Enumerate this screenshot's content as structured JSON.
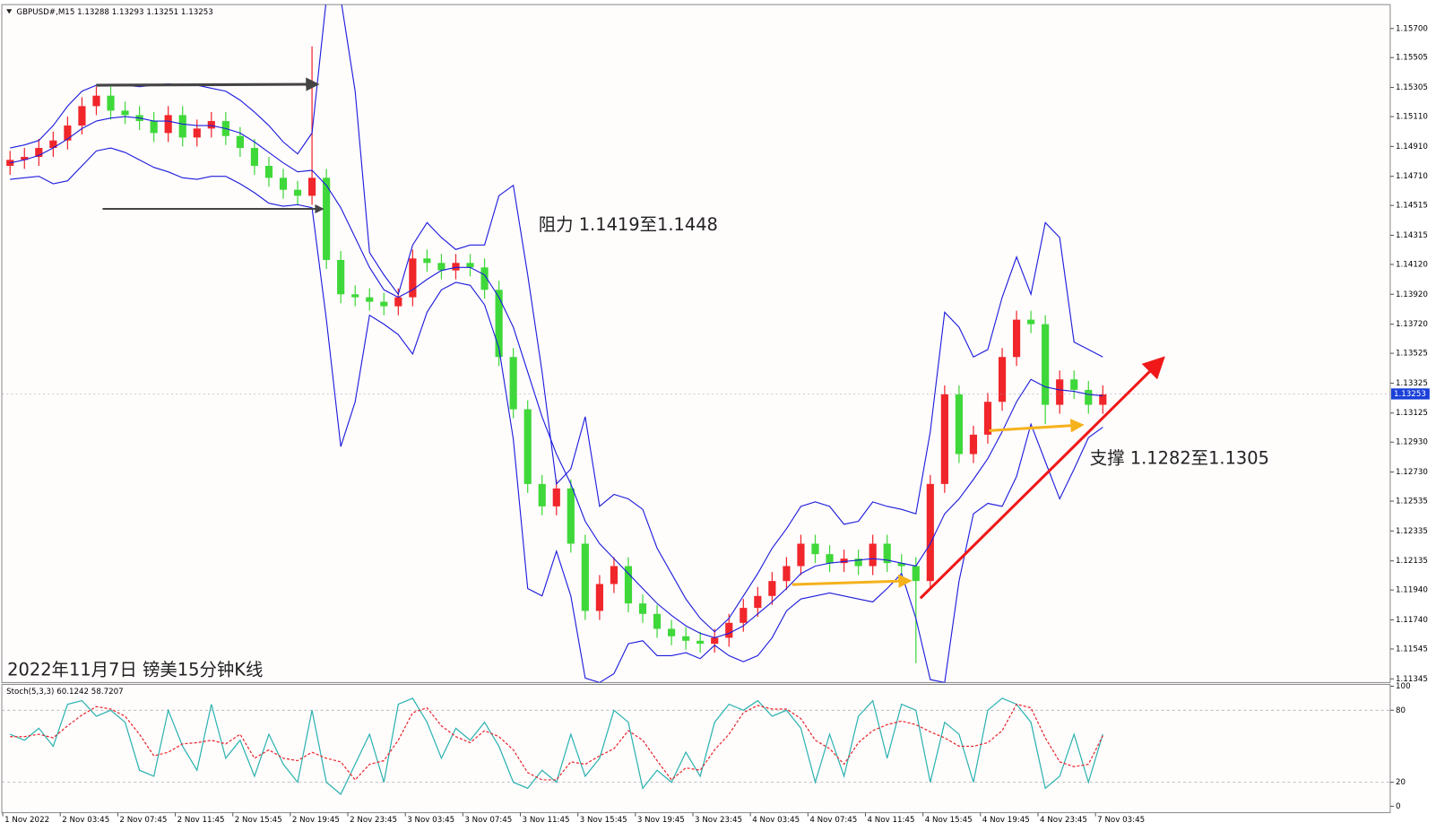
{
  "chart_data": [
    {
      "type": "candlestick",
      "title": "GBPUSD#,M15  1.13288 1.13293 1.13251 1.13253",
      "caption": "2022年11月7日 镑美15分钟K线",
      "annotations": [
        "阻力 1.1419至1.1448",
        "支撑 1.1282至1.1305"
      ],
      "categories": [
        "1 Nov 2022",
        null,
        null,
        null,
        "2 Nov 03:45",
        null,
        null,
        null,
        "2 Nov 07:45",
        null,
        null,
        null,
        "2 Nov 11:45",
        null,
        null,
        null,
        "2 Nov 15:45",
        null,
        null,
        null,
        "2 Nov 19:45",
        null,
        null,
        null,
        "2 Nov 23:45",
        null,
        null,
        null,
        "3 Nov 03:45",
        null,
        null,
        null,
        "3 Nov 07:45",
        null,
        null,
        null,
        "3 Nov 11:45",
        null,
        null,
        null,
        "3 Nov 15:45",
        null,
        null,
        null,
        "3 Nov 19:45",
        null,
        null,
        null,
        "3 Nov 23:45",
        null,
        null,
        null,
        "4 Nov 03:45",
        null,
        null,
        null,
        "4 Nov 07:45",
        null,
        null,
        null,
        "4 Nov 11:45",
        null,
        null,
        null,
        "4 Nov 15:45",
        null,
        null,
        null,
        "4 Nov 19:45",
        null,
        null,
        null,
        "4 Nov 23:45",
        null,
        null,
        null,
        "7 Nov 03:45"
      ],
      "open": [
        1.1478,
        1.1482,
        1.1484,
        1.149,
        1.1495,
        1.1505,
        1.1518,
        1.1525,
        1.1515,
        1.1512,
        1.1508,
        1.15,
        1.1512,
        1.1497,
        1.1503,
        1.1508,
        1.1498,
        1.149,
        1.1478,
        1.147,
        1.1462,
        1.1458,
        1.147,
        1.1415,
        1.1392,
        1.139,
        1.1387,
        1.1384,
        1.139,
        1.1416,
        1.1413,
        1.1408,
        1.1413,
        1.141,
        1.1395,
        1.135,
        1.1315,
        1.1265,
        1.125,
        1.1262,
        1.1225,
        1.118,
        1.1198,
        1.121,
        1.1185,
        1.1178,
        1.1168,
        1.1163,
        1.116,
        1.1158,
        1.1162,
        1.1172,
        1.1182,
        1.119,
        1.12,
        1.121,
        1.1225,
        1.1218,
        1.1212,
        1.1215,
        1.121,
        1.1225,
        1.1212,
        1.121,
        1.12,
        1.1265,
        1.1325,
        1.1285,
        1.1298,
        1.132,
        1.135,
        1.1375,
        1.1372,
        1.1318,
        1.1335,
        1.1328,
        1.1318
      ],
      "high": [
        1.1488,
        1.149,
        1.1496,
        1.1501,
        1.1511,
        1.1524,
        1.1531,
        1.1531,
        1.1521,
        1.1518,
        1.1514,
        1.1518,
        1.1518,
        1.1509,
        1.1514,
        1.1514,
        1.1504,
        1.1496,
        1.1484,
        1.1476,
        1.1468,
        1.1558,
        1.1476,
        1.1421,
        1.1398,
        1.1396,
        1.1393,
        1.1396,
        1.1422,
        1.1422,
        1.1419,
        1.1419,
        1.1419,
        1.1416,
        1.1401,
        1.1356,
        1.1321,
        1.1271,
        1.1268,
        1.1268,
        1.1231,
        1.1204,
        1.1216,
        1.1216,
        1.1191,
        1.1184,
        1.1174,
        1.1169,
        1.1166,
        1.1168,
        1.1178,
        1.1188,
        1.1196,
        1.1206,
        1.1216,
        1.1231,
        1.1231,
        1.1224,
        1.1221,
        1.1221,
        1.1231,
        1.1231,
        1.1218,
        1.1216,
        1.1271,
        1.1331,
        1.1331,
        1.1304,
        1.1326,
        1.1356,
        1.1381,
        1.1381,
        1.1378,
        1.1341,
        1.1341,
        1.1334,
        1.1331
      ],
      "low": [
        1.1472,
        1.1476,
        1.1478,
        1.1484,
        1.1489,
        1.1499,
        1.1512,
        1.1509,
        1.1506,
        1.1502,
        1.1494,
        1.1494,
        1.1491,
        1.1491,
        1.1497,
        1.1492,
        1.1484,
        1.1472,
        1.1464,
        1.1456,
        1.1452,
        1.1452,
        1.1409,
        1.1386,
        1.1384,
        1.1381,
        1.1378,
        1.1378,
        1.1384,
        1.1407,
        1.1402,
        1.1402,
        1.1404,
        1.1389,
        1.1344,
        1.1309,
        1.1259,
        1.1244,
        1.1244,
        1.1219,
        1.1174,
        1.1174,
        1.1192,
        1.1179,
        1.1172,
        1.1162,
        1.1157,
        1.1154,
        1.1152,
        1.1152,
        1.1156,
        1.1166,
        1.1176,
        1.1184,
        1.1194,
        1.1204,
        1.1212,
        1.1206,
        1.1206,
        1.1204,
        1.1204,
        1.1206,
        1.1204,
        1.1145,
        1.1194,
        1.1259,
        1.1279,
        1.1279,
        1.1292,
        1.1314,
        1.1344,
        1.1366,
        1.1305,
        1.1312,
        1.1322,
        1.1312,
        1.1312
      ],
      "close": [
        1.1482,
        1.1484,
        1.149,
        1.1495,
        1.1505,
        1.1518,
        1.1525,
        1.1515,
        1.1512,
        1.1508,
        1.15,
        1.1512,
        1.1497,
        1.1503,
        1.1508,
        1.1498,
        1.149,
        1.1478,
        1.147,
        1.1462,
        1.1458,
        1.147,
        1.1415,
        1.1392,
        1.139,
        1.1387,
        1.1384,
        1.139,
        1.1416,
        1.1413,
        1.1408,
        1.1413,
        1.141,
        1.1395,
        1.135,
        1.1315,
        1.1265,
        1.125,
        1.1262,
        1.1225,
        1.118,
        1.1198,
        1.121,
        1.1185,
        1.1178,
        1.1168,
        1.1163,
        1.116,
        1.1158,
        1.1162,
        1.1172,
        1.1182,
        1.119,
        1.12,
        1.121,
        1.1225,
        1.1218,
        1.1212,
        1.1215,
        1.121,
        1.1225,
        1.1212,
        1.121,
        1.12,
        1.1265,
        1.1325,
        1.1285,
        1.1298,
        1.132,
        1.135,
        1.1375,
        1.1372,
        1.1318,
        1.1335,
        1.1328,
        1.1318,
        1.1325
      ],
      "up_color": "#f0262b",
      "down_color": "#3fd83a",
      "overlays": [
        {
          "color": "#1c1cdc",
          "values": [
            1.149,
            1.1492,
            1.1495,
            1.1505,
            1.1518,
            1.1528,
            1.1532,
            1.1532,
            1.1532,
            1.1531,
            1.1532,
            1.1533,
            1.1532,
            1.1532,
            1.153,
            1.1528,
            1.1522,
            1.1514,
            1.1505,
            1.1494,
            1.1486,
            1.15,
            1.159,
            1.159,
            1.1528,
            1.142,
            1.1405,
            1.1392,
            1.1425,
            1.144,
            1.143,
            1.1422,
            1.1425,
            1.1425,
            1.1458,
            1.1465,
            1.1405,
            1.134,
            1.1265,
            1.1275,
            1.131,
            1.125,
            1.1258,
            1.1255,
            1.1248,
            1.1222,
            1.1205,
            1.1188,
            1.1175,
            1.1166,
            1.1175,
            1.119,
            1.1205,
            1.1222,
            1.1235,
            1.125,
            1.1253,
            1.125,
            1.1238,
            1.124,
            1.1253,
            1.125,
            1.1248,
            1.1245,
            1.13,
            1.138,
            1.137,
            1.135,
            1.1355,
            1.139,
            1.1417,
            1.1392,
            1.144,
            1.143,
            1.136,
            1.1355,
            1.135
          ]
        },
        {
          "color": "#1c1cdc",
          "values": [
            1.148,
            1.1482,
            1.1485,
            1.149,
            1.1496,
            1.1503,
            1.1508,
            1.151,
            1.1511,
            1.151,
            1.1508,
            1.1508,
            1.1506,
            1.1505,
            1.1505,
            1.1503,
            1.15,
            1.1494,
            1.1487,
            1.148,
            1.1474,
            1.1475,
            1.1465,
            1.145,
            1.143,
            1.141,
            1.1395,
            1.139,
            1.1395,
            1.1402,
            1.1408,
            1.141,
            1.141,
            1.1405,
            1.139,
            1.137,
            1.134,
            1.131,
            1.1285,
            1.1265,
            1.124,
            1.1225,
            1.1215,
            1.1205,
            1.1195,
            1.1185,
            1.1177,
            1.117,
            1.1165,
            1.1162,
            1.1165,
            1.117,
            1.1178,
            1.1186,
            1.1195,
            1.1205,
            1.121,
            1.1212,
            1.1213,
            1.1214,
            1.1215,
            1.1214,
            1.1212,
            1.121,
            1.1225,
            1.1245,
            1.1255,
            1.1268,
            1.1282,
            1.13,
            1.132,
            1.1335,
            1.133,
            1.1328,
            1.1327,
            1.1325,
            1.1324
          ]
        },
        {
          "color": "#1c1cdc",
          "values": [
            1.1469,
            1.147,
            1.1471,
            1.1466,
            1.1468,
            1.1478,
            1.1488,
            1.149,
            1.1487,
            1.1482,
            1.1477,
            1.1474,
            1.147,
            1.1469,
            1.1471,
            1.1471,
            1.1466,
            1.146,
            1.1453,
            1.1451,
            1.1452,
            1.145,
            1.1375,
            1.129,
            1.132,
            1.1378,
            1.1372,
            1.1365,
            1.1352,
            1.138,
            1.1395,
            1.14,
            1.1398,
            1.1385,
            1.1356,
            1.1295,
            1.1195,
            1.119,
            1.122,
            1.119,
            1.1135,
            1.1132,
            1.1138,
            1.1158,
            1.116,
            1.115,
            1.115,
            1.1152,
            1.1148,
            1.1157,
            1.115,
            1.1146,
            1.115,
            1.1162,
            1.118,
            1.1188,
            1.119,
            1.1192,
            1.119,
            1.1188,
            1.1186,
            1.1195,
            1.1205,
            1.1175,
            1.1134,
            1.1132,
            1.12,
            1.1245,
            1.1252,
            1.125,
            1.127,
            1.1305,
            1.128,
            1.1255,
            1.1275,
            1.1296,
            1.1303
          ]
        }
      ],
      "last_price": 1.13253,
      "ylim": [
        1.1132,
        1.1586
      ],
      "yticks": [
        {
          "value": 1.157,
          "label": "1.15700"
        },
        {
          "value": 1.15505,
          "label": "1.15505"
        },
        {
          "value": 1.15305,
          "label": "1.15305"
        },
        {
          "value": 1.1511,
          "label": "1.15110"
        },
        {
          "value": 1.1491,
          "label": "1.14910"
        },
        {
          "value": 1.1471,
          "label": "1.14710"
        },
        {
          "value": 1.14515,
          "label": "1.14515"
        },
        {
          "value": 1.14315,
          "label": "1.14315"
        },
        {
          "value": 1.1412,
          "label": "1.14120"
        },
        {
          "value": 1.1392,
          "label": "1.13920"
        },
        {
          "value": 1.1372,
          "label": "1.13720"
        },
        {
          "value": 1.13525,
          "label": "1.13525"
        },
        {
          "value": 1.13325,
          "label": "1.13325"
        },
        {
          "value": 1.13125,
          "label": "1.13125"
        },
        {
          "value": 1.1293,
          "label": "1.12930"
        },
        {
          "value": 1.1273,
          "label": "1.12730"
        },
        {
          "value": 1.12535,
          "label": "1.12535"
        },
        {
          "value": 1.12335,
          "label": "1.12335"
        },
        {
          "value": 1.12135,
          "label": "1.12135"
        },
        {
          "value": 1.1194,
          "label": "1.11940"
        },
        {
          "value": 1.1174,
          "label": "1.11740"
        },
        {
          "value": 1.11545,
          "label": "1.11545"
        },
        {
          "value": 1.11345,
          "label": "1.11345"
        }
      ],
      "grid": false
    },
    {
      "type": "line",
      "title": "Stoch(5,3,3) 60.1242 58.7207",
      "series": [
        {
          "color": "#2bb3b0",
          "dashed": false,
          "values": [
            60,
            55,
            65,
            50,
            85,
            88,
            75,
            80,
            70,
            30,
            25,
            80,
            50,
            30,
            85,
            40,
            55,
            25,
            60,
            35,
            20,
            80,
            20,
            10,
            35,
            60,
            20,
            85,
            90,
            70,
            40,
            65,
            55,
            70,
            50,
            20,
            15,
            30,
            20,
            60,
            25,
            40,
            80,
            70,
            15,
            30,
            20,
            45,
            25,
            70,
            85,
            80,
            88,
            75,
            80,
            65,
            20,
            60,
            25,
            75,
            88,
            40,
            85,
            80,
            20,
            70,
            60,
            20,
            80,
            90,
            85,
            70,
            15,
            25,
            60,
            20,
            60.1242
          ]
        },
        {
          "color": "#e8262b",
          "dashed": true,
          "values": [
            58,
            58,
            60,
            57,
            67,
            76,
            83,
            81,
            75,
            60,
            42,
            45,
            52,
            53,
            55,
            52,
            60,
            40,
            47,
            40,
            38,
            45,
            40,
            37,
            22,
            35,
            38,
            55,
            78,
            82,
            67,
            58,
            53,
            63,
            58,
            47,
            28,
            22,
            22,
            37,
            35,
            42,
            48,
            63,
            55,
            38,
            22,
            32,
            30,
            47,
            60,
            78,
            84,
            81,
            81,
            73,
            55,
            48,
            35,
            53,
            63,
            68,
            71,
            68,
            62,
            57,
            50,
            50,
            53,
            63,
            85,
            82,
            57,
            37,
            33,
            35,
            58.7207
          ]
        }
      ],
      "levels": [
        20,
        80
      ],
      "ylim": [
        0,
        100
      ],
      "yticks": [
        0,
        20,
        80,
        100
      ],
      "grid": false
    }
  ]
}
